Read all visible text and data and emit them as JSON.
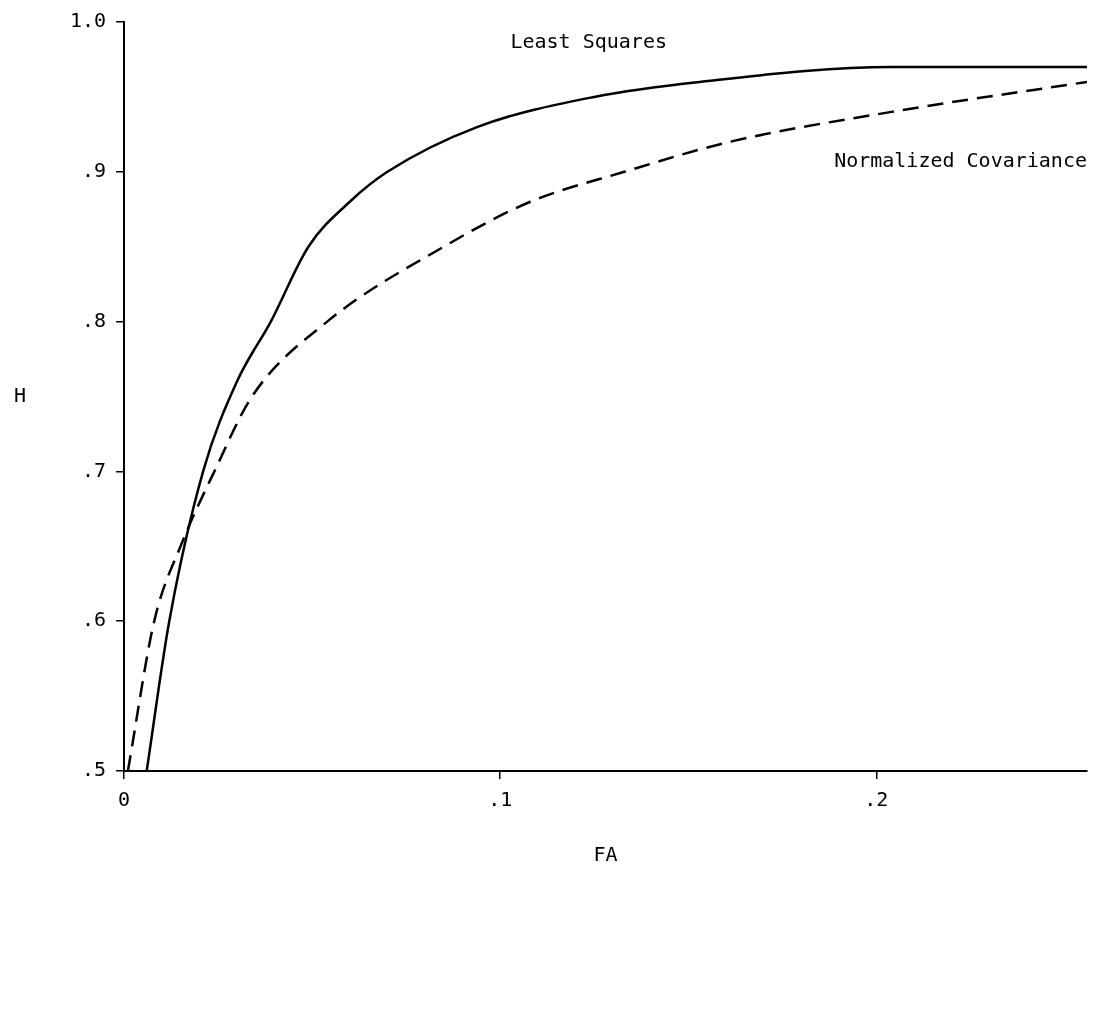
{
  "chart_data": {
    "type": "line",
    "xlabel": "FA",
    "ylabel": "H",
    "xlim": [
      0,
      0.256
    ],
    "ylim": [
      0.5,
      1.0
    ],
    "xticks": [
      0,
      {
        "value": 0.1,
        "label": ".1"
      },
      {
        "value": 0.2,
        "label": ".2"
      }
    ],
    "yticks": [
      {
        "value": 0.5,
        "label": ".5"
      },
      {
        "value": 0.6,
        "label": ".6"
      },
      {
        "value": 0.7,
        "label": ".7"
      },
      {
        "value": 0.8,
        "label": ".8"
      },
      {
        "value": 0.9,
        "label": ".9"
      },
      {
        "value": 1.0,
        "label": "1.0"
      }
    ],
    "grid": false,
    "legend": false,
    "marker": "none",
    "series": [
      {
        "name": "Least Squares",
        "color": "#000000",
        "line_style": "solid",
        "x": [
          0.006,
          0.012,
          0.021,
          0.03,
          0.039,
          0.049,
          0.06,
          0.07,
          0.094,
          0.125,
          0.153,
          0.204,
          0.256
        ],
        "values": [
          0.5,
          0.6,
          0.7,
          0.76,
          0.8,
          0.85,
          0.88,
          0.9,
          0.93,
          0.95,
          0.96,
          0.97,
          0.97
        ]
      },
      {
        "name": "Normalized Covariance",
        "color": "#000000",
        "line_style": "dashed",
        "x": [
          0.001,
          0.008,
          0.015,
          0.024,
          0.034,
          0.054,
          0.085,
          0.108,
          0.133,
          0.161,
          0.204,
          0.256
        ],
        "values": [
          0.5,
          0.6,
          0.65,
          0.7,
          0.75,
          0.8,
          0.85,
          0.88,
          0.9,
          0.92,
          0.94,
          0.96
        ]
      }
    ]
  }
}
